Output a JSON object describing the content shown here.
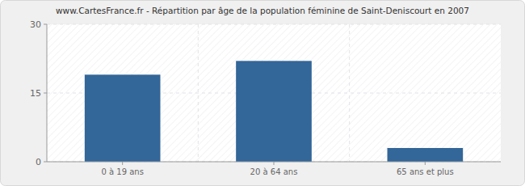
{
  "chart_data": {
    "type": "bar",
    "title": "www.CartesFrance.fr - Répartition par âge de la population féminine de Saint-Deniscourt en 2007",
    "categories": [
      "0 à 19 ans",
      "20 à 64 ans",
      "65 ans et plus"
    ],
    "values": [
      19,
      22,
      3
    ],
    "color": "#336699",
    "ylim": [
      0,
      30
    ],
    "yticks": [
      0,
      15,
      30
    ],
    "grid": true
  }
}
